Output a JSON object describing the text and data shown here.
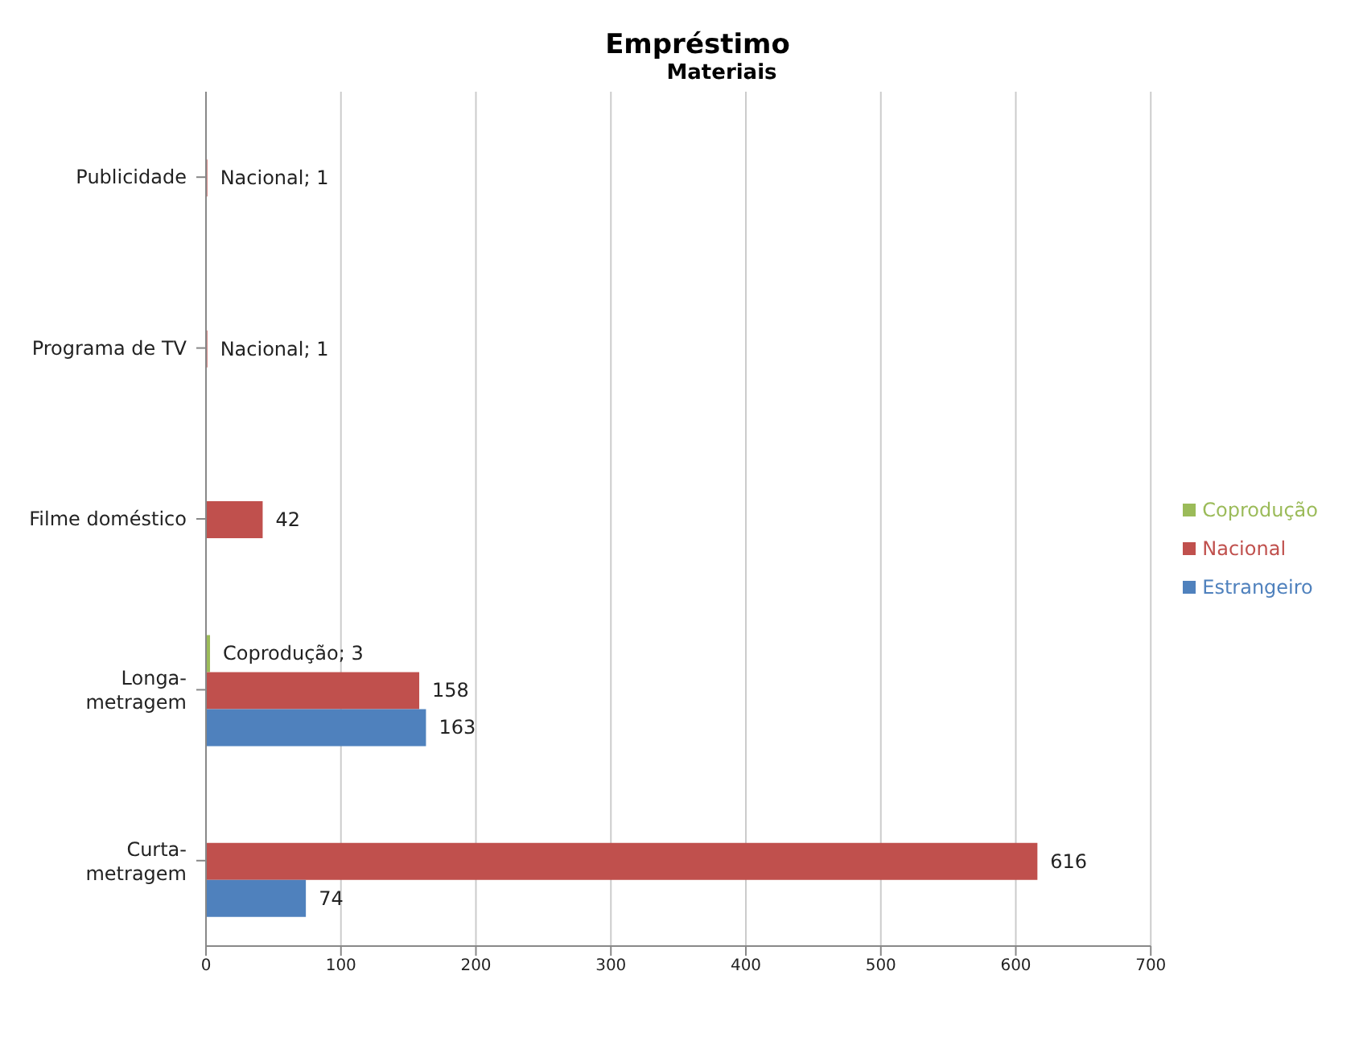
{
  "chart_data": {
    "type": "bar",
    "orientation": "horizontal",
    "title": "Empréstimo",
    "subtitle": "Materiais",
    "categories": [
      "Publicidade",
      "Programa de TV",
      "Filme doméstico",
      "Longa-metragem",
      "Curta-metragem"
    ],
    "series": [
      {
        "name": "Coprodução",
        "color": "#9bbb59",
        "values": [
          null,
          null,
          null,
          3,
          null
        ],
        "value_labels": [
          null,
          null,
          null,
          "Coprodução; 3",
          null
        ]
      },
      {
        "name": "Nacional",
        "color": "#c0504d",
        "values": [
          1,
          1,
          42,
          158,
          616
        ],
        "value_labels": [
          "Nacional; 1",
          "Nacional; 1",
          "42",
          "158",
          "616"
        ]
      },
      {
        "name": "Estrangeiro",
        "color": "#4f81bd",
        "values": [
          null,
          null,
          null,
          163,
          74
        ],
        "value_labels": [
          null,
          null,
          null,
          "163",
          "74"
        ]
      }
    ],
    "xlim": [
      0,
      700
    ],
    "xticks": [
      0,
      100,
      200,
      300,
      400,
      500,
      600,
      700
    ],
    "grid": "x",
    "legend": "right"
  }
}
